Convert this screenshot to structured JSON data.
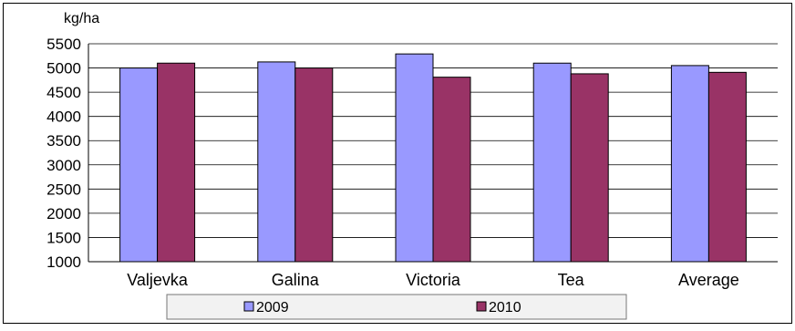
{
  "chart_data": {
    "type": "bar",
    "title": "",
    "xlabel": "",
    "ylabel": "kg/ha",
    "categories": [
      "Valjevka",
      "Galina",
      "Victoria",
      "Tea",
      "Average"
    ],
    "series": [
      {
        "name": "2009",
        "color": "#9999ff",
        "values": [
          5000,
          5125,
          5290,
          5100,
          5050
        ]
      },
      {
        "name": "2010",
        "color": "#993366",
        "values": [
          5100,
          5000,
          4810,
          4880,
          4910
        ]
      }
    ],
    "ylim": [
      1000,
      5500
    ],
    "yticks": [
      1000,
      1500,
      2000,
      2500,
      3000,
      3500,
      4000,
      4500,
      5000,
      5500
    ],
    "grid": true,
    "legend_position": "bottom"
  }
}
